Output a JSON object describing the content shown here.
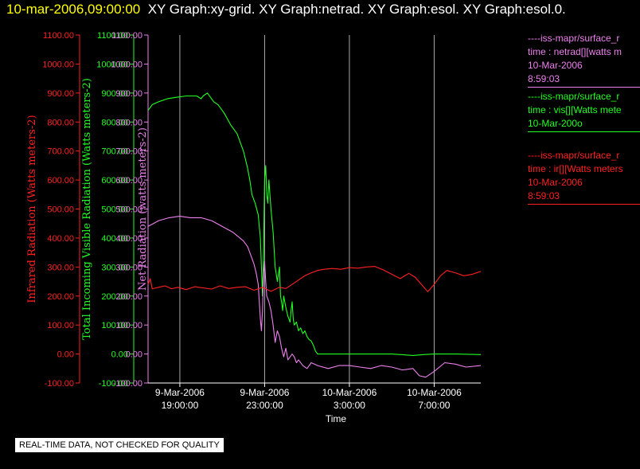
{
  "header": {
    "timestamp": "10-mar-2006,09:00:00",
    "titles": "XY Graph:xy-grid.  XY Graph:netrad.  XY Graph:esol.  XY Graph:esol.0."
  },
  "colors": {
    "ir": "#ff2020",
    "vis": "#20ff20",
    "net": "#ee80ee",
    "grid": "#aaaaaa"
  },
  "legend": [
    {
      "id": "net",
      "lines": [
        "----iss-mapr/surface_r",
        "time : netrad[][watts m",
        "10-Mar-2006",
        "8:59:03"
      ]
    },
    {
      "id": "vis",
      "lines": [
        "----iss-mapr/surface_r",
        "time : vis[][Watts mete",
        "10-Mar-200o"
      ]
    },
    {
      "id": "ir",
      "lines": [
        "----iss-mapr/surface_r",
        "time : ir[][Watts meters",
        "10-Mar-2006",
        "8:59:03"
      ]
    }
  ],
  "footer": "REAL-TIME DATA, NOT CHECKED FOR QUALITY",
  "chart_data": {
    "type": "line",
    "xlabel": "Time",
    "x_ticks": [
      {
        "hours": 0,
        "line1": "9-Mar-2006",
        "line2": "19:00:00"
      },
      {
        "hours": 4,
        "line1": "9-Mar-2006",
        "line2": "23:00:00"
      },
      {
        "hours": 8,
        "line1": "10-Mar-2006",
        "line2": "3:00:00"
      },
      {
        "hours": 12,
        "line1": "10-Mar-2006",
        "line2": "7:00:00"
      }
    ],
    "xlim_hours": [
      -1.5,
      14.2
    ],
    "ylim": [
      -100,
      1100
    ],
    "y_ticks": [
      "-100.00",
      "0.00",
      "100.00",
      "200.00",
      "300.00",
      "400.00",
      "500.00",
      "600.00",
      "700.00",
      "800.00",
      "900.00",
      "1000.00",
      "1100.00"
    ],
    "axes": [
      {
        "id": "ir",
        "label": "Infrared Radiation (Watts meters-2)"
      },
      {
        "id": "vis",
        "label": "Total Incoming Visible Radiation (Watts meters-2)"
      },
      {
        "id": "net",
        "label": "Net Radiation (watts meters-2)"
      }
    ],
    "series": [
      {
        "id": "vis",
        "x": [
          -1.5,
          -1.3,
          -1.0,
          -0.6,
          -0.2,
          0.3,
          0.8,
          1.0,
          1.1,
          1.3,
          1.6,
          1.8,
          2.1,
          2.4,
          2.7,
          3.0,
          3.1,
          3.2,
          3.3,
          3.4,
          3.55,
          3.7,
          3.8,
          3.85,
          3.9,
          3.95,
          4.0,
          4.05,
          4.1,
          4.15,
          4.2,
          4.3,
          4.4,
          4.5,
          4.6,
          4.7,
          4.75,
          4.8,
          4.85,
          4.9,
          5.0,
          5.1,
          5.2,
          5.25,
          5.3,
          5.35,
          5.4,
          5.5,
          5.6,
          5.7,
          5.8,
          5.9,
          6.0,
          6.1,
          6.2,
          6.3,
          6.4,
          6.5,
          6.6,
          6.7,
          6.8,
          6.9,
          7.0,
          7.5,
          8.0,
          9.0,
          10.0,
          11.0,
          11.5,
          12.0,
          13.0,
          14.2
        ],
        "y": [
          840,
          860,
          870,
          880,
          885,
          890,
          890,
          880,
          890,
          900,
          870,
          860,
          830,
          790,
          760,
          700,
          670,
          640,
          600,
          550,
          520,
          480,
          400,
          300,
          200,
          350,
          600,
          650,
          550,
          520,
          600,
          500,
          420,
          300,
          250,
          300,
          200,
          180,
          150,
          200,
          160,
          130,
          110,
          150,
          180,
          120,
          100,
          110,
          80,
          90,
          70,
          80,
          60,
          50,
          45,
          30,
          10,
          0,
          0,
          0,
          0,
          0,
          0,
          0,
          0,
          0,
          0,
          -5,
          -2,
          0,
          0,
          -2
        ]
      },
      {
        "id": "net",
        "x": [
          -1.5,
          -1.0,
          -0.5,
          0.0,
          0.5,
          1.0,
          1.5,
          2.0,
          2.5,
          3.0,
          3.2,
          3.4,
          3.5,
          3.6,
          3.7,
          3.8,
          3.85,
          3.9,
          3.95,
          4.0,
          4.05,
          4.1,
          4.2,
          4.3,
          4.4,
          4.5,
          4.6,
          4.7,
          4.8,
          4.9,
          5.0,
          5.1,
          5.2,
          5.3,
          5.4,
          5.5,
          5.6,
          5.8,
          6.0,
          6.2,
          6.5,
          7.0,
          7.5,
          8.0,
          8.5,
          9.0,
          9.5,
          10.0,
          10.5,
          11.0,
          11.3,
          11.6,
          12.0,
          12.5,
          13.0,
          13.5,
          14.2
        ],
        "y": [
          440,
          460,
          470,
          475,
          470,
          470,
          460,
          440,
          420,
          390,
          370,
          330,
          310,
          280,
          240,
          120,
          80,
          150,
          280,
          320,
          250,
          200,
          180,
          150,
          100,
          40,
          80,
          60,
          20,
          -10,
          20,
          -20,
          -10,
          0,
          -10,
          -30,
          -20,
          -40,
          -50,
          -30,
          -40,
          -50,
          -40,
          -40,
          -45,
          -50,
          -40,
          -45,
          -55,
          -50,
          -75,
          -80,
          -60,
          -30,
          -35,
          -45,
          -40
        ]
      },
      {
        "id": "ir",
        "x": [
          -1.5,
          -1.4,
          -1.3,
          -1.0,
          -0.7,
          -0.4,
          -0.1,
          0.3,
          0.7,
          1.1,
          1.5,
          1.9,
          2.3,
          2.7,
          3.1,
          3.5,
          3.9,
          4.3,
          4.7,
          5.0,
          5.3,
          5.6,
          5.9,
          6.2,
          6.5,
          6.8,
          7.2,
          7.6,
          8.0,
          8.4,
          8.8,
          9.2,
          9.6,
          10.0,
          10.4,
          10.8,
          11.1,
          11.4,
          11.7,
          12.0,
          12.3,
          12.6,
          13.0,
          13.4,
          13.8,
          14.2
        ],
        "y": [
          240,
          260,
          225,
          230,
          235,
          225,
          230,
          222,
          232,
          228,
          224,
          235,
          226,
          230,
          232,
          220,
          230,
          216,
          230,
          226,
          240,
          255,
          270,
          280,
          288,
          292,
          295,
          292,
          298,
          296,
          300,
          302,
          290,
          275,
          260,
          278,
          265,
          240,
          215,
          240,
          270,
          288,
          280,
          270,
          275,
          285
        ]
      }
    ]
  }
}
